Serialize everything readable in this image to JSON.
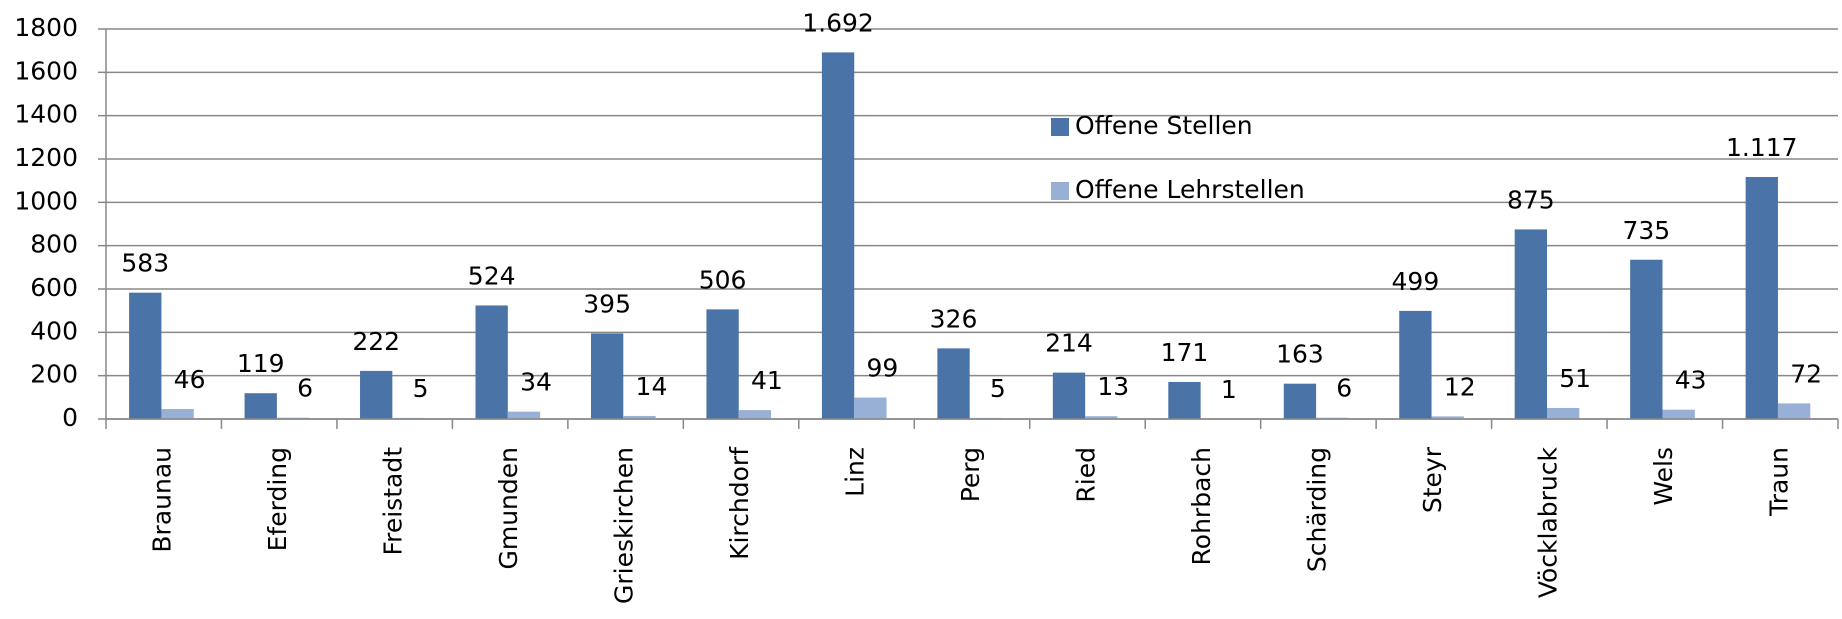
{
  "chart_data": {
    "type": "bar",
    "categories": [
      "Braunau",
      "Eferding",
      "Freistadt",
      "Gmunden",
      "Grieskirchen",
      "Kirchdorf",
      "Linz",
      "Perg",
      "Ried",
      "Rohrbach",
      "Schärding",
      "Steyr",
      "Vöcklabruck",
      "Wels",
      "Traun"
    ],
    "series": [
      {
        "name": "Offene Stellen",
        "color": "#4a74a8",
        "values": [
          583,
          119,
          222,
          524,
          395,
          506,
          1692,
          326,
          214,
          171,
          163,
          499,
          875,
          735,
          1117
        ],
        "value_labels": [
          "583",
          "119",
          "222",
          "524",
          "395",
          "506",
          "1.692",
          "326",
          "214",
          "171",
          "163",
          "499",
          "875",
          "735",
          "1.117"
        ]
      },
      {
        "name": "Offene Lehrstellen",
        "color": "#98afd6",
        "values": [
          46,
          6,
          5,
          34,
          14,
          41,
          99,
          5,
          13,
          1,
          6,
          12,
          51,
          43,
          72
        ]
      }
    ],
    "ylim": [
      0,
      1800
    ],
    "yticks": [
      0,
      200,
      400,
      600,
      800,
      1000,
      1200,
      1400,
      1600,
      1800
    ],
    "grid": true,
    "legend": "top-center"
  }
}
